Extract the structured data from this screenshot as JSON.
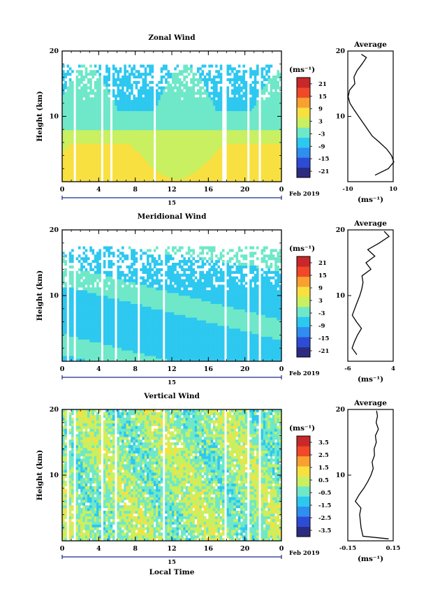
{
  "figure": {
    "date_label": "Feb 2019",
    "day_label": "15",
    "xlabel_bottom": "Local Time",
    "x_ticks": [
      "0",
      "4",
      "8",
      "12",
      "16",
      "20",
      "0"
    ]
  },
  "chart_data": [
    {
      "type": "heatmap",
      "title": "Zonal Wind",
      "ylabel": "Height (km)",
      "ylim": [
        0,
        20
      ],
      "y_ticks": [
        "20",
        "10"
      ],
      "xlim_hours": [
        0,
        24
      ],
      "colorbar": {
        "unit": "(ms⁻¹)",
        "ticks": [
          "21",
          "15",
          "9",
          "3",
          "-3",
          "-9",
          "-15",
          "-21"
        ],
        "range": [
          -24,
          24
        ]
      },
      "average_profile": {
        "title": "Average",
        "xlabel": "(ms⁻¹)",
        "x_ticks": [
          "-10",
          "10"
        ],
        "xlim": [
          -10,
          10
        ],
        "y_ticks": [
          "20",
          "10"
        ],
        "points": [
          [
            2,
            1
          ],
          [
            8,
            2
          ],
          [
            10,
            3
          ],
          [
            9,
            4
          ],
          [
            7,
            5
          ],
          [
            4,
            6
          ],
          [
            1,
            7
          ],
          [
            -1,
            8
          ],
          [
            -3,
            9
          ],
          [
            -5,
            10
          ],
          [
            -7,
            11
          ],
          [
            -9,
            12
          ],
          [
            -10,
            13
          ],
          [
            -9,
            14
          ],
          [
            -7,
            15
          ],
          [
            -7,
            16
          ],
          [
            -6,
            17
          ],
          [
            -4,
            18
          ],
          [
            -2,
            19
          ],
          [
            -4,
            19.5
          ]
        ]
      }
    },
    {
      "type": "heatmap",
      "title": "Meridional Wind",
      "ylabel": "Height (km)",
      "ylim": [
        0,
        20
      ],
      "y_ticks": [
        "20",
        "10"
      ],
      "xlim_hours": [
        0,
        24
      ],
      "colorbar": {
        "unit": "(ms⁻¹)",
        "ticks": [
          "21",
          "15",
          "9",
          "3",
          "-3",
          "-9",
          "-15",
          "-21"
        ],
        "range": [
          -24,
          24
        ]
      },
      "average_profile": {
        "title": "Average",
        "xlabel": "(ms⁻¹)",
        "x_ticks": [
          "-6",
          "4"
        ],
        "xlim": [
          -6,
          4
        ],
        "y_ticks": [
          "20",
          "10"
        ],
        "points": [
          [
            -4,
            1
          ],
          [
            -5,
            2
          ],
          [
            -4.5,
            3
          ],
          [
            -4,
            4
          ],
          [
            -3,
            5
          ],
          [
            -4,
            6
          ],
          [
            -5,
            7
          ],
          [
            -4.5,
            8
          ],
          [
            -4,
            9
          ],
          [
            -3.5,
            10
          ],
          [
            -3,
            11
          ],
          [
            -2.5,
            12
          ],
          [
            -3,
            13
          ],
          [
            -1,
            14
          ],
          [
            -2,
            15
          ],
          [
            0,
            16
          ],
          [
            -1.5,
            17
          ],
          [
            1,
            18
          ],
          [
            3,
            19
          ],
          [
            2,
            19.8
          ]
        ]
      }
    },
    {
      "type": "heatmap",
      "title": "Vertical Wind",
      "ylabel": "Height (km)",
      "ylim": [
        0,
        20
      ],
      "y_ticks": [
        "20",
        "10"
      ],
      "xlim_hours": [
        0,
        24
      ],
      "colorbar": {
        "unit": "(ms⁻¹)",
        "ticks": [
          "3.5",
          "2.5",
          "1.5",
          "0.5",
          "-0.5",
          "-1.5",
          "-2.5",
          "-3.5"
        ],
        "range": [
          -4,
          4
        ]
      },
      "average_profile": {
        "title": "Average",
        "xlabel": "(ms⁻¹)",
        "x_ticks": [
          "-0.15",
          "0.15"
        ],
        "xlim": [
          -0.15,
          0.15
        ],
        "y_ticks": [
          "20",
          "10"
        ],
        "points": [
          [
            0.12,
            0.3
          ],
          [
            -0.05,
            0.7
          ],
          [
            -0.06,
            2
          ],
          [
            -0.07,
            4
          ],
          [
            -0.06,
            5
          ],
          [
            -0.1,
            6
          ],
          [
            -0.08,
            7
          ],
          [
            -0.04,
            8
          ],
          [
            -0.02,
            9
          ],
          [
            0,
            10
          ],
          [
            0.02,
            11
          ],
          [
            0.01,
            12
          ],
          [
            0.03,
            13
          ],
          [
            0.02,
            14
          ],
          [
            0.04,
            15
          ],
          [
            0.03,
            16
          ],
          [
            0.05,
            17
          ],
          [
            0.04,
            18
          ],
          [
            0.05,
            19
          ],
          [
            0.04,
            19.8
          ]
        ]
      }
    }
  ],
  "colors": {
    "colormap": [
      "#2b2c80",
      "#2e4bd6",
      "#2f8ef0",
      "#2dc8f0",
      "#6ee8c8",
      "#c8f060",
      "#f8e040",
      "#f8a030",
      "#f04828",
      "#c8282a"
    ]
  }
}
